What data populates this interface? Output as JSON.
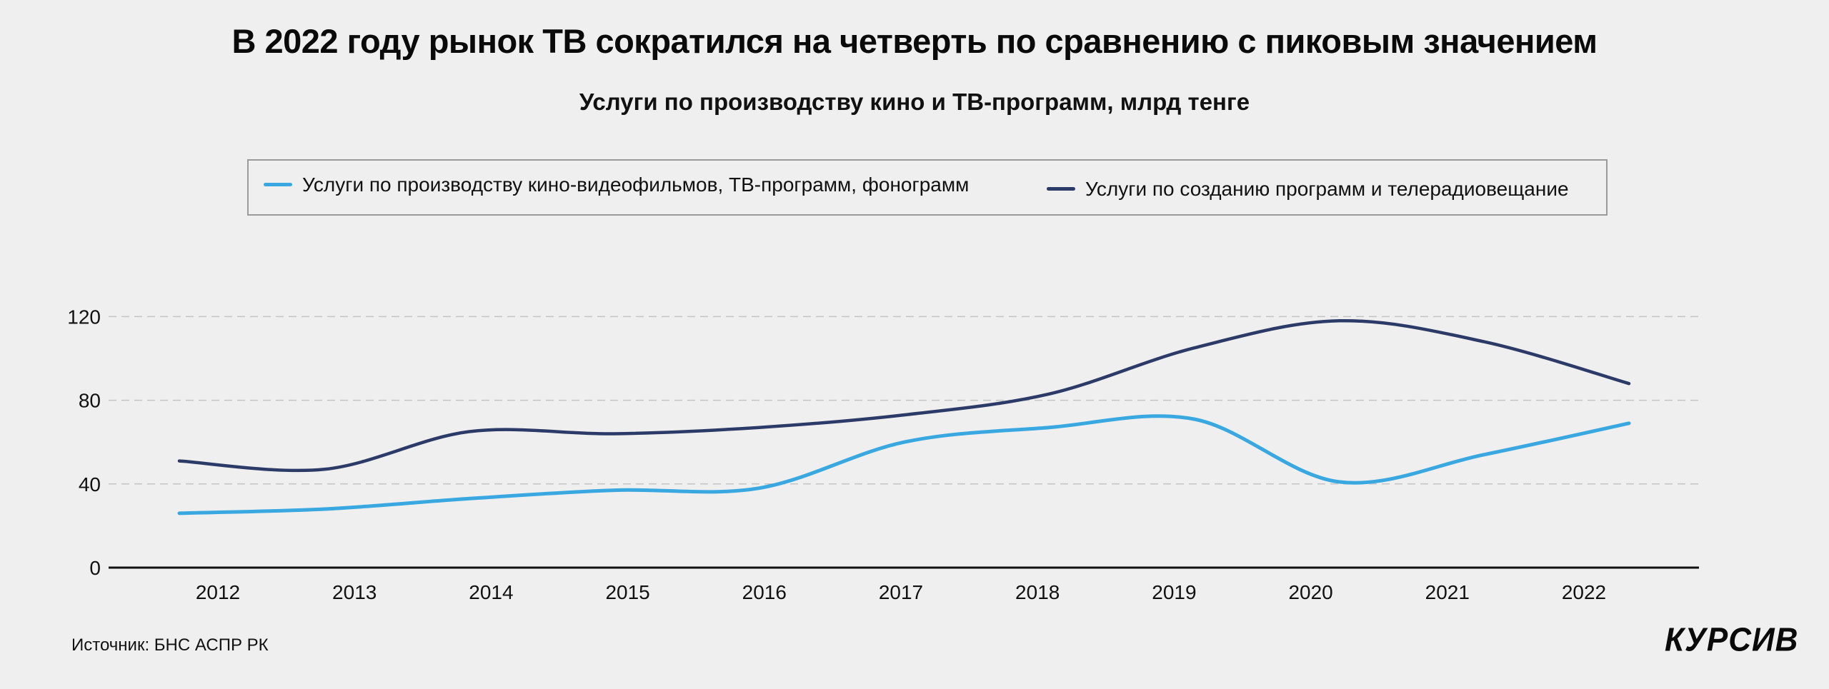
{
  "title": "В 2022 году рынок ТВ сократился на четверть по сравнению  с пиковым значением",
  "subtitle": "Услуги по производству кино и ТВ-программ, млрд тенге",
  "source": "Источник: БНС АСПР РК",
  "logo": "КУРСИВ",
  "colors": {
    "background": "#efefef",
    "series_light": "#3aa8e0",
    "series_dark": "#2b3a67",
    "grid": "#c4c4c4",
    "axis": "#111111"
  },
  "chart_data": {
    "type": "line",
    "title": "Услуги по производству кино и ТВ-программ, млрд тенге",
    "xlabel": "",
    "ylabel": "",
    "categories": [
      "2012",
      "2013",
      "2014",
      "2015",
      "2016",
      "2017",
      "2018",
      "2019",
      "2020",
      "2021",
      "2022"
    ],
    "yticks": [
      "0",
      "40",
      "80",
      "120"
    ],
    "ylim": [
      0,
      130
    ],
    "grid": true,
    "smooth": true,
    "legend_position": "top",
    "series": [
      {
        "name": "Услуги по производству кино-видеофильмов, ТВ-программ, фонограмм",
        "color": "#3aa8e0",
        "values": [
          26,
          28,
          33,
          37,
          38,
          60,
          67,
          71,
          41,
          54,
          69
        ]
      },
      {
        "name": "Услуги по созданию программ и телерадиовещание",
        "color": "#2b3a67",
        "values": [
          51,
          47,
          65,
          64,
          67,
          73,
          83,
          105,
          118,
          108,
          88
        ]
      }
    ]
  }
}
